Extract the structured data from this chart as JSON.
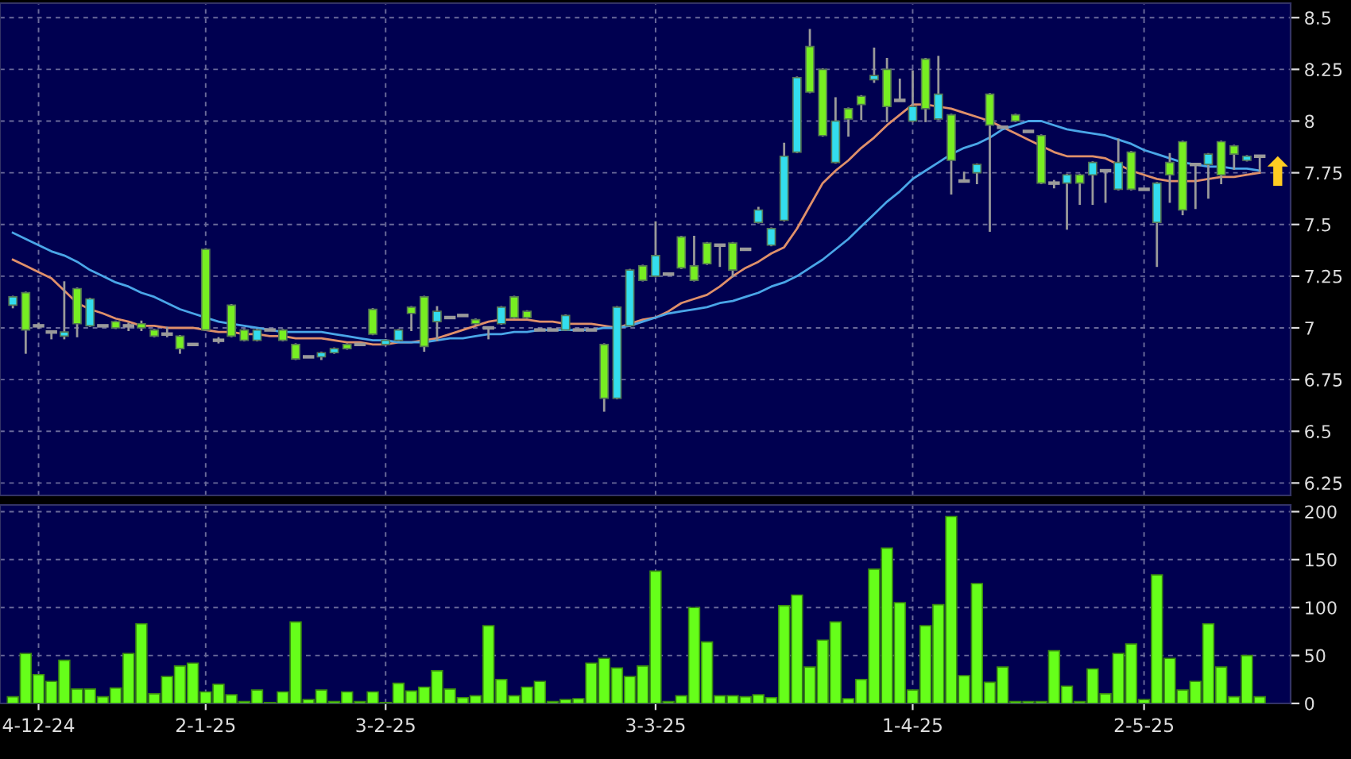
{
  "chart_data": [
    {
      "type": "candlestick",
      "categories": [
        null,
        null,
        null,
        null,
        null,
        null,
        null,
        null,
        null,
        null,
        null,
        null,
        null,
        null,
        null,
        null,
        null,
        null,
        null,
        null,
        null,
        null,
        null,
        null,
        null,
        null,
        null,
        null,
        null,
        null,
        null,
        null,
        null,
        null,
        null,
        null,
        null,
        null,
        null,
        null,
        null,
        null,
        null,
        null,
        null,
        null,
        null,
        null,
        null,
        null,
        null,
        null,
        null,
        null,
        null,
        null,
        null,
        null,
        null,
        null,
        null,
        null,
        null,
        null,
        null,
        null,
        null,
        null,
        null,
        null,
        null,
        null,
        null,
        null,
        null,
        null,
        null,
        null,
        null,
        null,
        null,
        null,
        null,
        null,
        null,
        null,
        null,
        null,
        null,
        null,
        null,
        null,
        null,
        null,
        null,
        null,
        null,
        null
      ],
      "ohlc": [
        [
          7.11,
          7.15,
          7.1,
          7.15
        ],
        [
          7.17,
          7.17,
          6.88,
          6.99
        ],
        [
          7.01,
          7.02,
          7.0,
          7.01
        ],
        [
          6.98,
          6.98,
          6.95,
          6.98
        ],
        [
          6.96,
          7.22,
          6.95,
          6.98
        ],
        [
          7.19,
          7.19,
          6.96,
          7.02
        ],
        [
          7.01,
          7.14,
          7.01,
          7.14
        ],
        [
          7.01,
          7.01,
          7.01,
          7.01
        ],
        [
          7.03,
          7.03,
          7.0,
          7.0
        ],
        [
          7.01,
          7.02,
          6.99,
          7.01
        ],
        [
          7.02,
          7.03,
          6.99,
          7.0
        ],
        [
          6.99,
          6.99,
          6.96,
          6.96
        ],
        [
          6.97,
          7.0,
          6.96,
          6.97
        ],
        [
          6.96,
          6.96,
          6.88,
          6.9
        ],
        [
          6.92,
          6.92,
          6.92,
          6.92
        ],
        [
          7.38,
          7.38,
          6.99,
          6.99
        ],
        [
          6.94,
          6.95,
          6.93,
          6.94
        ],
        [
          7.11,
          7.11,
          6.96,
          6.96
        ],
        [
          6.99,
          6.99,
          6.94,
          6.94
        ],
        [
          6.94,
          6.99,
          6.94,
          6.99
        ],
        [
          6.99,
          6.99,
          6.99,
          6.99
        ],
        [
          6.99,
          6.99,
          6.94,
          6.94
        ],
        [
          6.92,
          6.92,
          6.85,
          6.85
        ],
        [
          6.86,
          6.86,
          6.86,
          6.86
        ],
        [
          6.86,
          6.88,
          6.85,
          6.88
        ],
        [
          6.88,
          6.9,
          6.88,
          6.9
        ],
        [
          6.92,
          6.92,
          6.9,
          6.9
        ],
        [
          6.92,
          6.92,
          6.92,
          6.92
        ],
        [
          7.09,
          7.09,
          6.97,
          6.97
        ],
        [
          6.92,
          6.94,
          6.92,
          6.94
        ],
        [
          6.94,
          6.99,
          6.94,
          6.99
        ],
        [
          7.1,
          7.1,
          6.99,
          7.07
        ],
        [
          7.15,
          7.15,
          6.89,
          6.91
        ],
        [
          7.03,
          7.1,
          6.94,
          7.08
        ],
        [
          7.05,
          7.05,
          7.05,
          7.05
        ],
        [
          7.06,
          7.06,
          7.06,
          7.06
        ],
        [
          7.04,
          7.04,
          7.02,
          7.02
        ],
        [
          7.0,
          7.0,
          6.95,
          7.0
        ],
        [
          7.02,
          7.1,
          7.02,
          7.1
        ],
        [
          7.15,
          7.15,
          7.05,
          7.05
        ],
        [
          7.08,
          7.08,
          7.05,
          7.05
        ],
        [
          6.99,
          6.99,
          6.99,
          6.99
        ],
        [
          6.99,
          6.99,
          6.99,
          6.99
        ],
        [
          6.99,
          7.06,
          6.99,
          7.06
        ],
        [
          6.99,
          6.99,
          6.99,
          6.99
        ],
        [
          6.99,
          6.99,
          6.99,
          6.99
        ],
        [
          6.92,
          6.92,
          6.6,
          6.66
        ],
        [
          6.66,
          7.1,
          6.66,
          7.1
        ],
        [
          7.01,
          7.28,
          7.01,
          7.28
        ],
        [
          7.3,
          7.3,
          7.23,
          7.23
        ],
        [
          7.25,
          7.51,
          7.25,
          7.35
        ],
        [
          7.26,
          7.26,
          7.26,
          7.26
        ],
        [
          7.44,
          7.44,
          7.29,
          7.29
        ],
        [
          7.3,
          7.44,
          7.23,
          7.23
        ],
        [
          7.41,
          7.41,
          7.31,
          7.31
        ],
        [
          7.4,
          7.4,
          7.3,
          7.4
        ],
        [
          7.41,
          7.41,
          7.25,
          7.28
        ],
        [
          7.38,
          7.38,
          7.38,
          7.38
        ],
        [
          7.51,
          7.58,
          7.51,
          7.57
        ],
        [
          7.4,
          7.48,
          7.4,
          7.48
        ],
        [
          7.52,
          7.89,
          7.52,
          7.83
        ],
        [
          7.85,
          8.21,
          7.85,
          8.21
        ],
        [
          8.36,
          8.44,
          8.14,
          8.14
        ],
        [
          8.25,
          8.25,
          7.93,
          7.93
        ],
        [
          7.8,
          8.11,
          7.8,
          8.0
        ],
        [
          8.06,
          8.06,
          7.93,
          8.01
        ],
        [
          8.12,
          8.12,
          8.01,
          8.08
        ],
        [
          8.2,
          8.35,
          8.19,
          8.22
        ],
        [
          8.25,
          8.3,
          8.0,
          8.07
        ],
        [
          8.1,
          8.2,
          8.1,
          8.1
        ],
        [
          8.0,
          8.24,
          8.0,
          8.07
        ],
        [
          8.3,
          8.3,
          8.0,
          8.06
        ],
        [
          8.01,
          8.31,
          8.01,
          8.13
        ],
        [
          8.03,
          8.03,
          7.65,
          7.81
        ],
        [
          7.71,
          7.75,
          7.71,
          7.71
        ],
        [
          7.75,
          7.79,
          7.7,
          7.79
        ],
        [
          8.13,
          8.13,
          7.47,
          7.98
        ],
        [
          7.97,
          7.97,
          7.97,
          7.97
        ],
        [
          8.03,
          8.03,
          8.0,
          8.0
        ],
        [
          7.95,
          7.95,
          7.95,
          7.95
        ],
        [
          7.93,
          7.93,
          7.7,
          7.7
        ],
        [
          7.7,
          7.71,
          7.68,
          7.7
        ],
        [
          7.7,
          7.74,
          7.48,
          7.74
        ],
        [
          7.74,
          7.74,
          7.6,
          7.7
        ],
        [
          7.74,
          7.8,
          7.6,
          7.8
        ],
        [
          7.76,
          7.76,
          7.61,
          7.76
        ],
        [
          7.67,
          7.91,
          7.67,
          7.8
        ],
        [
          7.85,
          7.85,
          7.67,
          7.67
        ],
        [
          7.67,
          7.67,
          7.67,
          7.67
        ],
        [
          7.51,
          7.7,
          7.3,
          7.7
        ],
        [
          7.8,
          7.84,
          7.61,
          7.74
        ],
        [
          7.9,
          7.9,
          7.55,
          7.57
        ],
        [
          7.79,
          7.79,
          7.58,
          7.79
        ],
        [
          7.79,
          7.84,
          7.63,
          7.84
        ],
        [
          7.9,
          7.9,
          7.7,
          7.74
        ],
        [
          7.88,
          7.88,
          7.77,
          7.84
        ],
        [
          7.81,
          7.83,
          7.81,
          7.83
        ],
        [
          7.83,
          7.83,
          7.76,
          7.83
        ]
      ],
      "colors": [
        "#33ddee",
        "#77ee22",
        "#9a9a9a",
        "#9a9a9a",
        "#33ddee",
        "#77ee22",
        "#33ddee",
        "#9a9a9a",
        "#77ee22",
        "#9a9a9a",
        "#77ee22",
        "#77ee22",
        "#9a9a9a",
        "#77ee22",
        "#9a9a9a",
        "#77ee22",
        "#9a9a9a",
        "#77ee22",
        "#77ee22",
        "#33ddee",
        "#9a9a9a",
        "#77ee22",
        "#77ee22",
        "#9a9a9a",
        "#33ddee",
        "#33ddee",
        "#77ee22",
        "#9a9a9a",
        "#77ee22",
        "#33ddee",
        "#33ddee",
        "#77ee22",
        "#77ee22",
        "#33ddee",
        "#9a9a9a",
        "#9a9a9a",
        "#77ee22",
        "#9a9a9a",
        "#33ddee",
        "#77ee22",
        "#77ee22",
        "#9a9a9a",
        "#9a9a9a",
        "#33ddee",
        "#9a9a9a",
        "#9a9a9a",
        "#77ee22",
        "#33ddee",
        "#33ddee",
        "#77ee22",
        "#33ddee",
        "#9a9a9a",
        "#77ee22",
        "#77ee22",
        "#77ee22",
        "#9a9a9a",
        "#77ee22",
        "#9a9a9a",
        "#33ddee",
        "#33ddee",
        "#33ddee",
        "#33ddee",
        "#77ee22",
        "#77ee22",
        "#33ddee",
        "#77ee22",
        "#77ee22",
        "#33ddee",
        "#77ee22",
        "#9a9a9a",
        "#33ddee",
        "#77ee22",
        "#33ddee",
        "#77ee22",
        "#9a9a9a",
        "#33ddee",
        "#77ee22",
        "#9a9a9a",
        "#77ee22",
        "#9a9a9a",
        "#77ee22",
        "#9a9a9a",
        "#33ddee",
        "#77ee22",
        "#33ddee",
        "#9a9a9a",
        "#33ddee",
        "#77ee22",
        "#9a9a9a",
        "#33ddee",
        "#77ee22",
        "#77ee22",
        "#9a9a9a",
        "#33ddee",
        "#77ee22",
        "#77ee22",
        "#33ddee",
        "#9a9a9a"
      ],
      "series": [
        {
          "type": "line",
          "color": "#e0906a",
          "values": [
            7.33,
            7.3,
            7.27,
            7.24,
            7.18,
            7.12,
            7.09,
            7.07,
            7.045,
            7.03,
            7.01,
            7.01,
            7.0,
            7.0,
            7.0,
            6.99,
            6.98,
            6.98,
            6.97,
            6.97,
            6.96,
            6.96,
            6.95,
            6.95,
            6.95,
            6.94,
            6.93,
            6.93,
            6.92,
            6.92,
            6.93,
            6.93,
            6.94,
            6.95,
            6.97,
            6.99,
            7.01,
            7.03,
            7.04,
            7.04,
            7.04,
            7.03,
            7.03,
            7.02,
            7.02,
            7.02,
            7.01,
            7.0,
            7.02,
            7.04,
            7.05,
            7.08,
            7.12,
            7.14,
            7.16,
            7.2,
            7.25,
            7.29,
            7.32,
            7.36,
            7.39,
            7.48,
            7.59,
            7.7,
            7.76,
            7.81,
            7.87,
            7.92,
            7.98,
            8.03,
            8.08,
            8.08,
            8.07,
            8.06,
            8.04,
            8.02,
            8.0,
            7.97,
            7.94,
            7.91,
            7.88,
            7.85,
            7.83,
            7.83,
            7.83,
            7.82,
            7.79,
            7.76,
            7.74,
            7.72,
            7.71,
            7.71,
            7.71,
            7.72,
            7.73,
            7.73,
            7.74,
            7.75
          ]
        },
        {
          "type": "line",
          "color": "#4aa6e8",
          "values": [
            7.46,
            7.43,
            7.4,
            7.37,
            7.35,
            7.32,
            7.28,
            7.25,
            7.22,
            7.2,
            7.17,
            7.15,
            7.12,
            7.09,
            7.07,
            7.05,
            7.03,
            7.02,
            7.01,
            7.0,
            6.99,
            6.98,
            6.98,
            6.98,
            6.98,
            6.97,
            6.96,
            6.95,
            6.94,
            6.94,
            6.93,
            6.93,
            6.93,
            6.94,
            6.95,
            6.95,
            6.96,
            6.97,
            6.97,
            6.98,
            6.98,
            6.99,
            6.99,
            6.99,
            6.99,
            6.99,
            7.0,
            7.0,
            7.01,
            7.03,
            7.05,
            7.07,
            7.08,
            7.09,
            7.1,
            7.12,
            7.13,
            7.15,
            7.17,
            7.2,
            7.22,
            7.25,
            7.29,
            7.33,
            7.38,
            7.43,
            7.49,
            7.55,
            7.61,
            7.66,
            7.72,
            7.76,
            7.8,
            7.84,
            7.87,
            7.89,
            7.92,
            7.96,
            7.98,
            8.0,
            8.0,
            7.98,
            7.96,
            7.95,
            7.94,
            7.93,
            7.91,
            7.89,
            7.86,
            7.84,
            7.82,
            7.8,
            7.79,
            7.78,
            7.78,
            7.77,
            7.77,
            7.76
          ]
        }
      ],
      "ylim": [
        6.19,
        8.57
      ],
      "yticks": [
        6.25,
        6.5,
        6.75,
        7,
        7.25,
        7.5,
        7.75,
        8,
        8.25,
        8.5
      ],
      "grid": true,
      "tick_labels": "y"
    },
    {
      "type": "bar",
      "categories": [
        null,
        null,
        "4-12-24",
        null,
        null,
        null,
        null,
        null,
        null,
        null,
        null,
        null,
        null,
        null,
        null,
        "2-1-25",
        null,
        null,
        null,
        null,
        null,
        null,
        null,
        null,
        null,
        null,
        null,
        null,
        null,
        "3-2-25",
        null,
        null,
        null,
        null,
        null,
        null,
        null,
        null,
        null,
        null,
        null,
        null,
        null,
        null,
        null,
        null,
        null,
        null,
        null,
        null,
        "3-3-25",
        null,
        null,
        null,
        null,
        null,
        null,
        null,
        null,
        null,
        null,
        null,
        null,
        null,
        null,
        null,
        null,
        null,
        null,
        null,
        "1-4-25",
        null,
        null,
        null,
        null,
        null,
        null,
        null,
        null,
        null,
        null,
        null,
        null,
        null,
        null,
        null,
        null,
        null,
        "2-5-25",
        null,
        null,
        null,
        null,
        null,
        null,
        null,
        null,
        null
      ],
      "values": [
        7,
        52,
        30,
        23,
        45,
        15,
        15,
        7,
        16,
        52,
        83,
        10,
        28,
        39,
        42,
        12,
        20,
        9,
        2,
        14,
        1,
        12,
        85,
        4,
        14,
        2,
        12,
        2,
        12,
        1,
        21,
        13,
        17,
        34,
        15,
        6,
        8,
        81,
        25,
        8,
        17,
        23,
        2,
        4,
        5,
        42,
        47,
        37,
        28,
        39,
        138,
        2,
        8,
        100,
        64,
        8,
        8,
        7,
        9,
        6,
        102,
        113,
        38,
        66,
        85,
        5,
        25,
        140,
        162,
        105,
        14,
        81,
        103,
        195,
        29,
        125,
        22,
        38,
        2,
        2,
        2,
        55,
        18,
        2,
        36,
        10,
        52,
        62,
        4,
        134,
        47,
        14,
        23,
        83,
        38,
        7,
        50,
        7
      ],
      "color": "#66ff1a",
      "ylim": [
        0,
        207
      ],
      "yticks": [
        0,
        50,
        100,
        150,
        200
      ],
      "grid": true
    }
  ]
}
